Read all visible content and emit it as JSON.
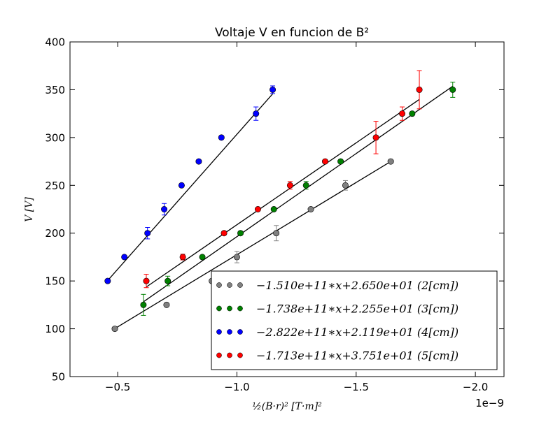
{
  "chart_data": {
    "type": "scatter",
    "title": "Voltaje V en funcion de B²",
    "xlabel": "½(B·r)² [T·m]²",
    "ylabel": "V [V]",
    "x_offset_label": "1e−9",
    "xlim": [
      -3e-10,
      -2.12e-09
    ],
    "ylim": [
      50,
      400
    ],
    "xticks": [
      -5e-10,
      -1e-09,
      -1.5e-09,
      -2e-09
    ],
    "xtick_labels": [
      "−0.5",
      "−1.0",
      "−1.5",
      "−2.0"
    ],
    "yticks": [
      50,
      100,
      150,
      200,
      250,
      300,
      350,
      400
    ],
    "ytick_labels": [
      "50",
      "100",
      "150",
      "200",
      "250",
      "300",
      "350",
      "400"
    ],
    "legend_position": "lower-right",
    "series": [
      {
        "name": "−1.510e+11∗x+2.650e+01 (2[cm])",
        "color": "#808080",
        "fit": [
          -151000000000.0,
          26.5
        ],
        "x": [
          -4.88e-10,
          -7.05e-10,
          -8.95e-10,
          -1e-09,
          -1.165e-09,
          -1.31e-09,
          -1.455e-09,
          -1.645e-09
        ],
        "y": [
          100,
          125,
          150,
          175,
          200,
          225,
          250,
          275
        ],
        "yerr": [
          0,
          0,
          0,
          6,
          8,
          0,
          5,
          0
        ]
      },
      {
        "name": "−1.738e+11∗x+2.255e+01 (3[cm])",
        "color": "#008000",
        "fit": [
          -173800000000.0,
          22.55
        ],
        "x": [
          -6.08e-10,
          -7.1e-10,
          -8.55e-10,
          -1.015e-09,
          -1.155e-09,
          -1.29e-09,
          -1.435e-09,
          -1.735e-09,
          -1.905e-09
        ],
        "y": [
          125,
          150,
          175,
          200,
          225,
          250,
          275,
          325,
          350
        ],
        "yerr": [
          11,
          5,
          0,
          0,
          0,
          4,
          0,
          0,
          8
        ]
      },
      {
        "name": "−2.822e+11∗x+2.119e+01 (4[cm])",
        "color": "#0000ff",
        "fit": [
          -282200000000.0,
          21.19
        ],
        "x": [
          -4.58e-10,
          -5.28e-10,
          -6.25e-10,
          -6.95e-10,
          -7.68e-10,
          -8.4e-10,
          -9.35e-10,
          -1.08e-09,
          -1.15e-09
        ],
        "y": [
          150,
          175,
          200,
          225,
          250,
          275,
          300,
          325,
          350
        ],
        "yerr": [
          0,
          0,
          6,
          6,
          0,
          0,
          0,
          7,
          4
        ]
      },
      {
        "name": "−1.713e+11∗x+3.751e+01 (5[cm])",
        "color": "#ff0000",
        "fit": [
          -171300000000.0,
          37.51
        ],
        "x": [
          -6.2e-10,
          -7.73e-10,
          -9.46e-10,
          -1.088e-09,
          -1.223e-09,
          -1.37e-09,
          -1.583e-09,
          -1.693e-09,
          -1.765e-09
        ],
        "y": [
          150,
          175,
          200,
          225,
          250,
          275,
          300,
          325,
          350
        ],
        "yerr": [
          7,
          3,
          0,
          0,
          4,
          0,
          17,
          7,
          20
        ]
      }
    ]
  }
}
